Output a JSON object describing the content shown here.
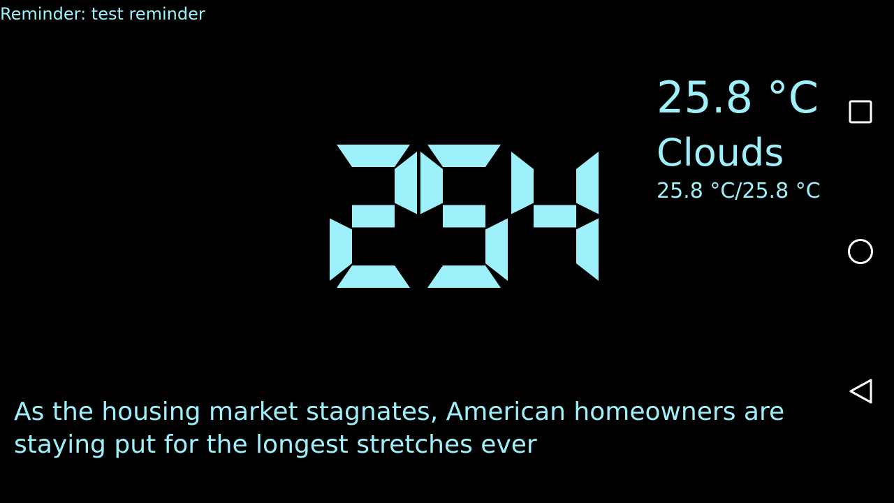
{
  "reminder": {
    "text": "Reminder: test reminder"
  },
  "clock": {
    "hours": "2",
    "minutes": "54"
  },
  "weather": {
    "temperature": "25.8 °C",
    "condition": "Clouds",
    "range": "25.8 °C/25.8 °C"
  },
  "news": {
    "headline": "As the housing market stagnates, American homeowners are staying put for the longest stretches ever"
  },
  "navigation": {
    "buttons": [
      {
        "name": "recent-apps",
        "icon": "square-icon"
      },
      {
        "name": "home",
        "icon": "circle-icon"
      },
      {
        "name": "back",
        "icon": "triangle-back-icon"
      }
    ]
  },
  "colors": {
    "background": "#000000",
    "foreground": "#9ef0fb",
    "nav_icon": "#ffffff"
  }
}
